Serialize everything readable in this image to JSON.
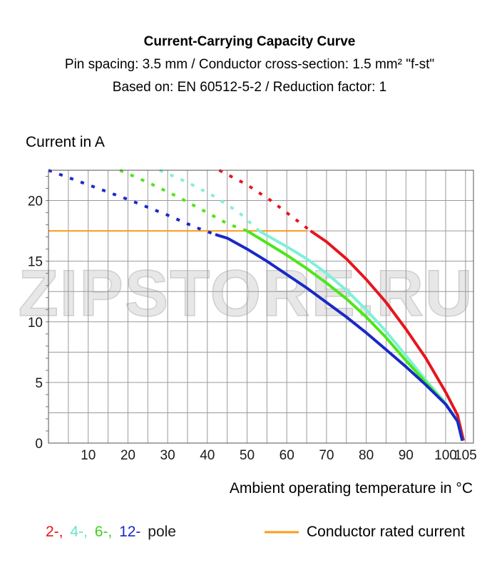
{
  "chart_data": {
    "type": "line",
    "title": "Current-Carrying Capacity Curve",
    "subtitle_1": "Pin spacing: 3.5 mm / Conductor cross-section: 1.5 mm² \"f-st\"",
    "subtitle_2": "Based on: EN 60512-5-2 / Reduction factor: 1",
    "ylabel": "Current in A",
    "xlabel": "Ambient operating temperature in °C",
    "xlim": [
      0,
      107
    ],
    "ylim": [
      0,
      22.5
    ],
    "x_ticks": [
      10,
      20,
      30,
      40,
      50,
      60,
      70,
      80,
      90,
      100,
      105
    ],
    "y_ticks": [
      0,
      5,
      10,
      15,
      20
    ],
    "legend": {
      "pole_labels": [
        "2-,",
        "4-,",
        "6-,",
        "12-",
        "pole"
      ],
      "rated_label": "Conductor rated current"
    },
    "rated_current": 17.5,
    "rated_color": "#ff9a1a",
    "series": [
      {
        "name": "2-",
        "color": "#e8141c",
        "dashed": [
          [
            43,
            22.5
          ],
          [
            50,
            21.3
          ],
          [
            56,
            20.0
          ],
          [
            62,
            18.5
          ],
          [
            66,
            17.5
          ]
        ],
        "solid": [
          [
            66,
            17.5
          ],
          [
            70,
            16.6
          ],
          [
            75,
            15.2
          ],
          [
            80,
            13.5
          ],
          [
            85,
            11.6
          ],
          [
            90,
            9.4
          ],
          [
            95,
            7.0
          ],
          [
            100,
            4.2
          ],
          [
            103,
            2.3
          ],
          [
            104.5,
            0.2
          ]
        ]
      },
      {
        "name": "4-",
        "color": "#7ff0d8",
        "dashed": [
          [
            28,
            22.5
          ],
          [
            35,
            21.5
          ],
          [
            42,
            20.3
          ],
          [
            48,
            19.0
          ],
          [
            53,
            17.5
          ]
        ],
        "solid": [
          [
            53,
            17.5
          ],
          [
            60,
            16.2
          ],
          [
            65,
            15.2
          ],
          [
            70,
            14.0
          ],
          [
            75,
            12.6
          ],
          [
            80,
            11.0
          ],
          [
            85,
            9.2
          ],
          [
            90,
            7.2
          ],
          [
            95,
            5.2
          ],
          [
            100,
            3.3
          ],
          [
            103,
            1.8
          ],
          [
            104.2,
            0.2
          ]
        ]
      },
      {
        "name": "6-",
        "color": "#4de61a",
        "dashed": [
          [
            18,
            22.5
          ],
          [
            25,
            21.5
          ],
          [
            32,
            20.4
          ],
          [
            40,
            19.0
          ],
          [
            45,
            18.1
          ],
          [
            50,
            17.5
          ]
        ],
        "solid": [
          [
            50,
            17.5
          ],
          [
            55,
            16.5
          ],
          [
            60,
            15.5
          ],
          [
            65,
            14.4
          ],
          [
            70,
            13.2
          ],
          [
            75,
            11.9
          ],
          [
            80,
            10.4
          ],
          [
            85,
            8.7
          ],
          [
            90,
            6.8
          ],
          [
            95,
            5.0
          ],
          [
            100,
            3.2
          ],
          [
            103,
            1.8
          ],
          [
            104.2,
            0.2
          ]
        ]
      },
      {
        "name": "12-",
        "color": "#1a28c8",
        "dashed": [
          [
            0,
            22.5
          ],
          [
            10,
            21.3
          ],
          [
            20,
            20.1
          ],
          [
            30,
            18.8
          ],
          [
            37,
            17.8
          ],
          [
            42,
            17.2
          ]
        ],
        "solid": [
          [
            42,
            17.2
          ],
          [
            45,
            16.9
          ],
          [
            50,
            16.0
          ],
          [
            55,
            15.0
          ],
          [
            60,
            13.9
          ],
          [
            65,
            12.8
          ],
          [
            70,
            11.6
          ],
          [
            75,
            10.4
          ],
          [
            80,
            9.1
          ],
          [
            85,
            7.7
          ],
          [
            90,
            6.3
          ],
          [
            95,
            4.8
          ],
          [
            100,
            3.2
          ],
          [
            103,
            1.8
          ],
          [
            104.2,
            0.2
          ]
        ]
      }
    ]
  }
}
